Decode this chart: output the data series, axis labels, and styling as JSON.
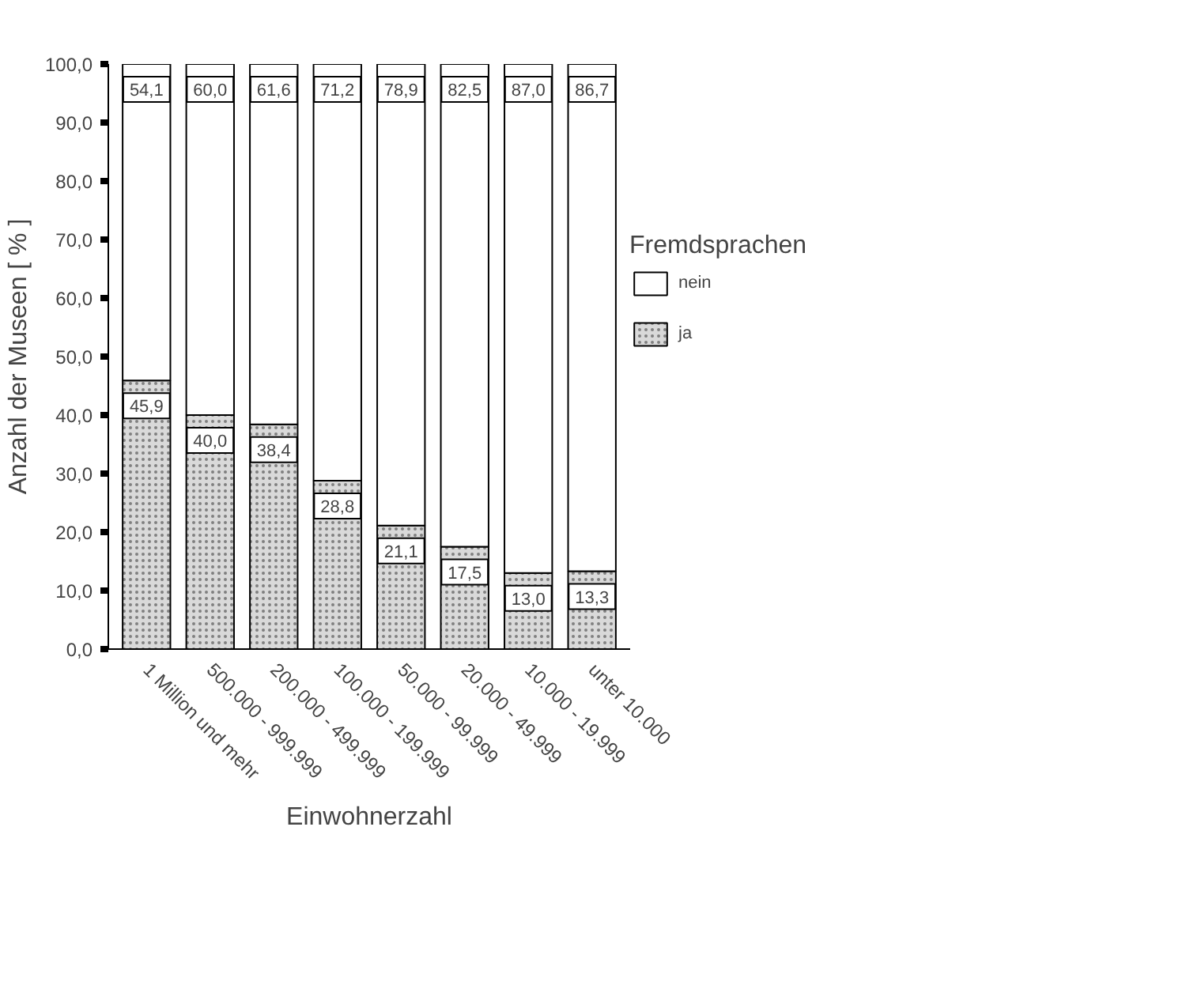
{
  "chart_data": {
    "type": "bar",
    "stacked": true,
    "categories": [
      "1 Million und mehr",
      "500.000 - 999.999",
      "200.000 - 499.999",
      "100.000 - 199.999",
      "50.000 - 99.999",
      "20.000 - 49.999",
      "10.000 - 19.999",
      "unter 10.000"
    ],
    "series": [
      {
        "name": "ja",
        "color": "#d9d9d9",
        "values": [
          45.9,
          40.0,
          38.4,
          28.8,
          21.1,
          17.5,
          13.0,
          13.3
        ],
        "value_labels": [
          "45,9",
          "40,0",
          "38,4",
          "28,8",
          "21,1",
          "17,5",
          "13,0",
          "13,3"
        ]
      },
      {
        "name": "nein",
        "color": "#ffffff",
        "values": [
          54.1,
          60.0,
          61.6,
          71.2,
          78.9,
          82.5,
          87.0,
          86.7
        ],
        "value_labels": [
          "54,1",
          "60,0",
          "61,6",
          "71,2",
          "78,9",
          "82,5",
          "87,0",
          "86,7"
        ]
      }
    ],
    "xlabel": "Einwohnerzahl",
    "ylabel": "Anzahl der Museen [ % ]",
    "legend_title": "Fremdsprachen",
    "legend": "right",
    "grid": false,
    "ylim": [
      0,
      100
    ],
    "yticks": [
      {
        "value": 0,
        "label": "0,0"
      },
      {
        "value": 10,
        "label": "10,0"
      },
      {
        "value": 20,
        "label": "20,0"
      },
      {
        "value": 30,
        "label": "30,0"
      },
      {
        "value": 40,
        "label": "40,0"
      },
      {
        "value": 50,
        "label": "50,0"
      },
      {
        "value": 60,
        "label": "60,0"
      },
      {
        "value": 70,
        "label": "70,0"
      },
      {
        "value": 80,
        "label": "80,0"
      },
      {
        "value": 90,
        "label": "90,0"
      },
      {
        "value": 100,
        "label": "100,0"
      }
    ]
  }
}
